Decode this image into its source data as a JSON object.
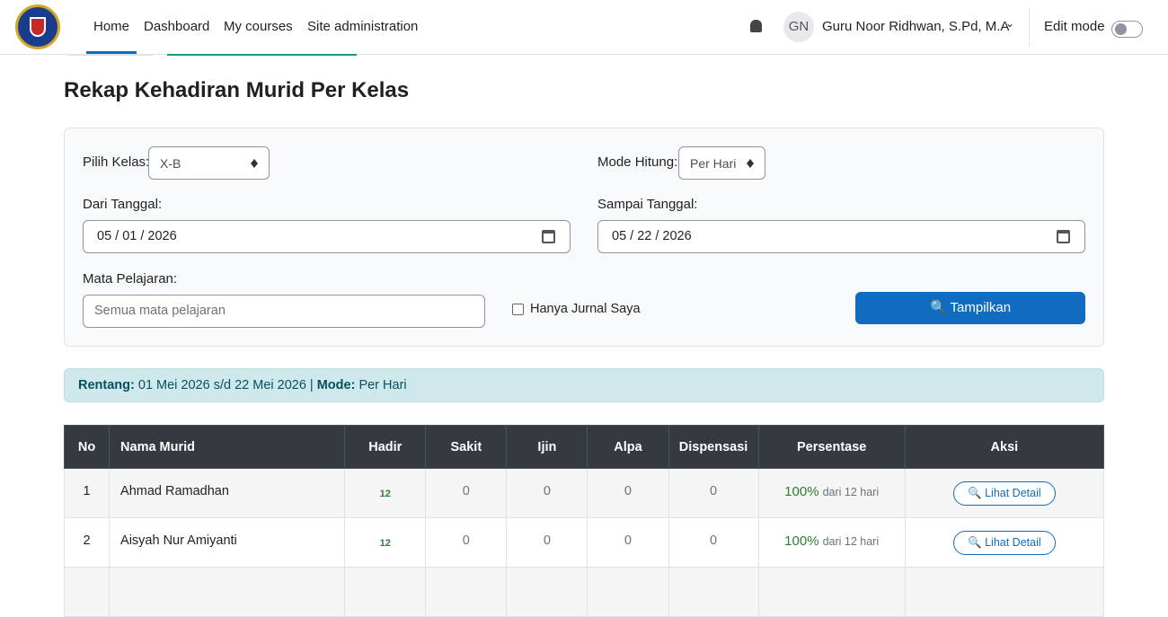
{
  "nav": {
    "links": [
      "Home",
      "Dashboard",
      "My courses",
      "Site administration"
    ],
    "user_initials": "GN",
    "user_name": "Guru Noor Ridhwan, S.Pd, M.A",
    "edit_mode": "Edit mode"
  },
  "page": {
    "title": "Rekap Kehadiran Murid Per Kelas"
  },
  "form": {
    "kelas_label": "Pilih Kelas:",
    "kelas_value": "X-B",
    "mode_label": "Mode Hitung:",
    "mode_value": "Per Hari",
    "dari_label": "Dari Tanggal:",
    "dari_value": "05 / 01 / 2026",
    "sampai_label": "Sampai Tanggal:",
    "sampai_value": "05 / 22 / 2026",
    "mapel_label": "Mata Pelajaran:",
    "mapel_placeholder": "Semua mata pelajaran",
    "checkbox_label": "Hanya Jurnal Saya",
    "button": "🔍 Tampilkan"
  },
  "info": {
    "rentang_label": "Rentang:",
    "rentang_value": "01 Mei 2026 s/d 22 Mei 2026 |",
    "mode_label": "Mode:",
    "mode_value": "Per Hari"
  },
  "table": {
    "headers": [
      "No",
      "Nama Murid",
      "Hadir",
      "Sakit",
      "Ijin",
      "Alpa",
      "Dispensasi",
      "Persentase",
      "Aksi"
    ],
    "rows": [
      [
        1,
        "Ahmad Ramadhan",
        12,
        0,
        0,
        0,
        0,
        "100%",
        "dari 12 hari",
        "🔍 Lihat Detail"
      ],
      [
        2,
        "Aisyah Nur Amiyanti",
        12,
        0,
        0,
        0,
        0,
        "100%",
        "dari 12 hari",
        "🔍 Lihat Detail"
      ]
    ]
  }
}
